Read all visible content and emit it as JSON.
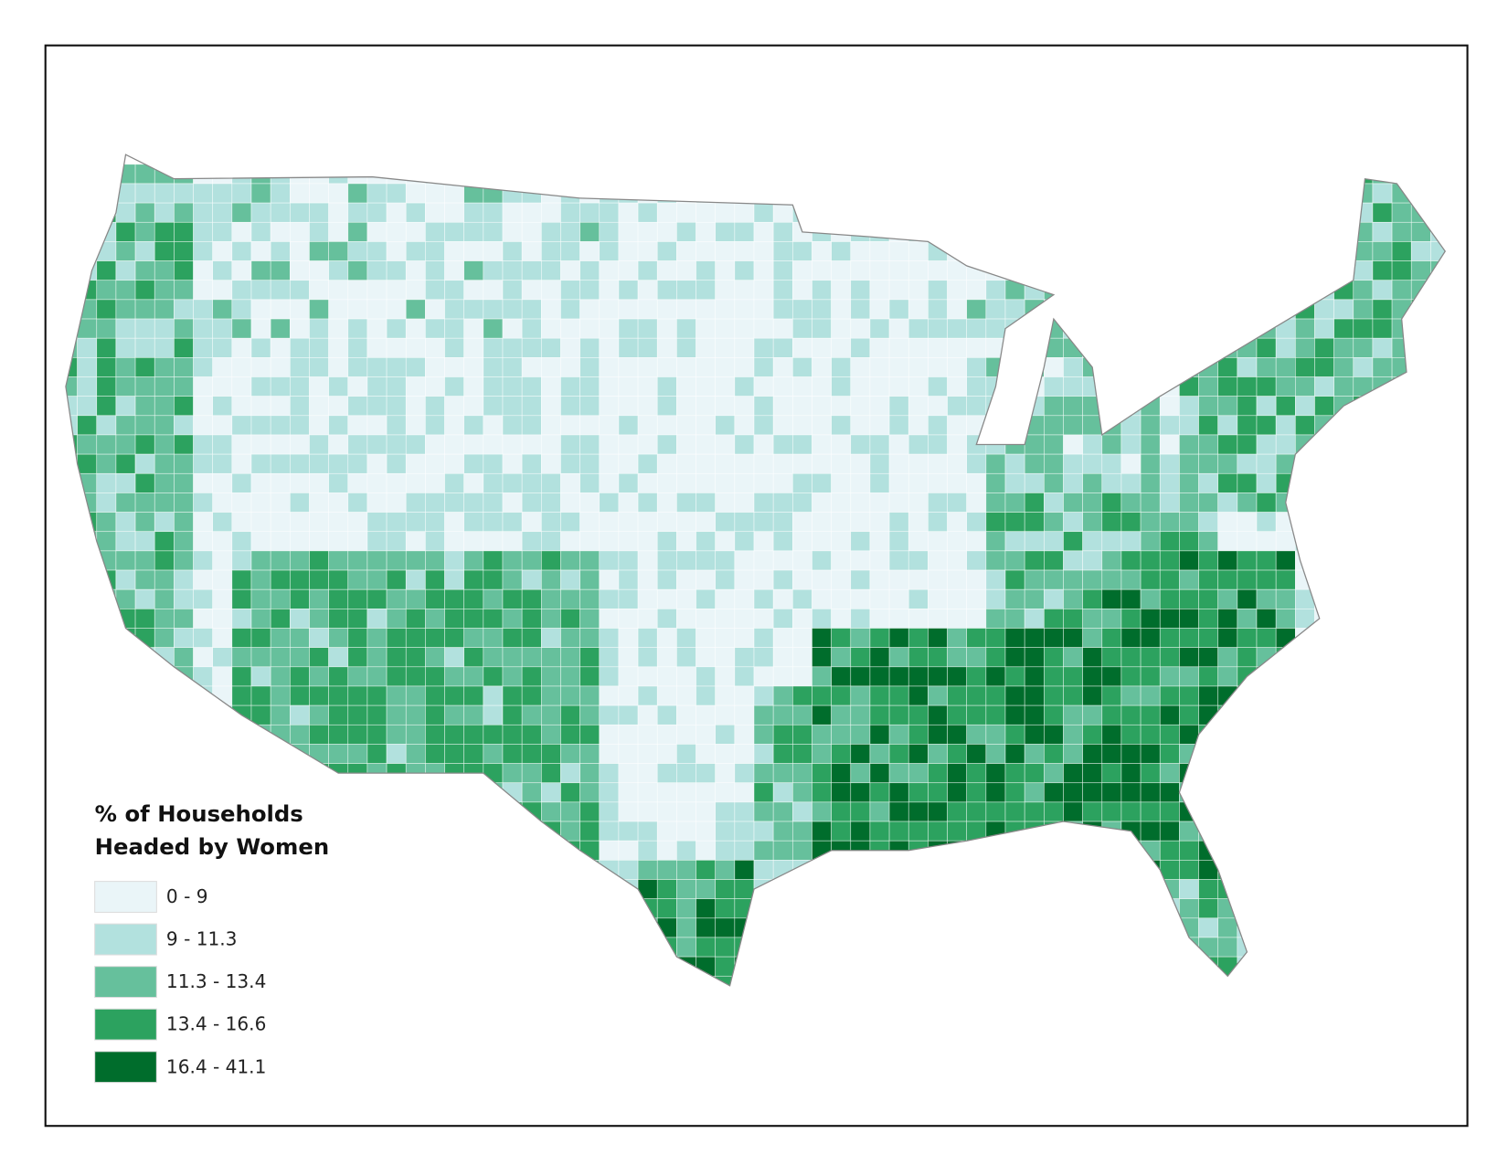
{
  "legend": {
    "title_lines": [
      "% of Households",
      "Headed by Women"
    ],
    "items": [
      {
        "label": "0 - 9",
        "color": "#eaf5f8"
      },
      {
        "label": "9 - 11.3",
        "color": "#b2e1de"
      },
      {
        "label": "11.3 - 13.4",
        "color": "#66c09c"
      },
      {
        "label": "13.4 - 16.6",
        "color": "#2ca25f"
      },
      {
        "label": "16.4 - 41.1",
        "color": "#006d2c"
      }
    ]
  }
}
